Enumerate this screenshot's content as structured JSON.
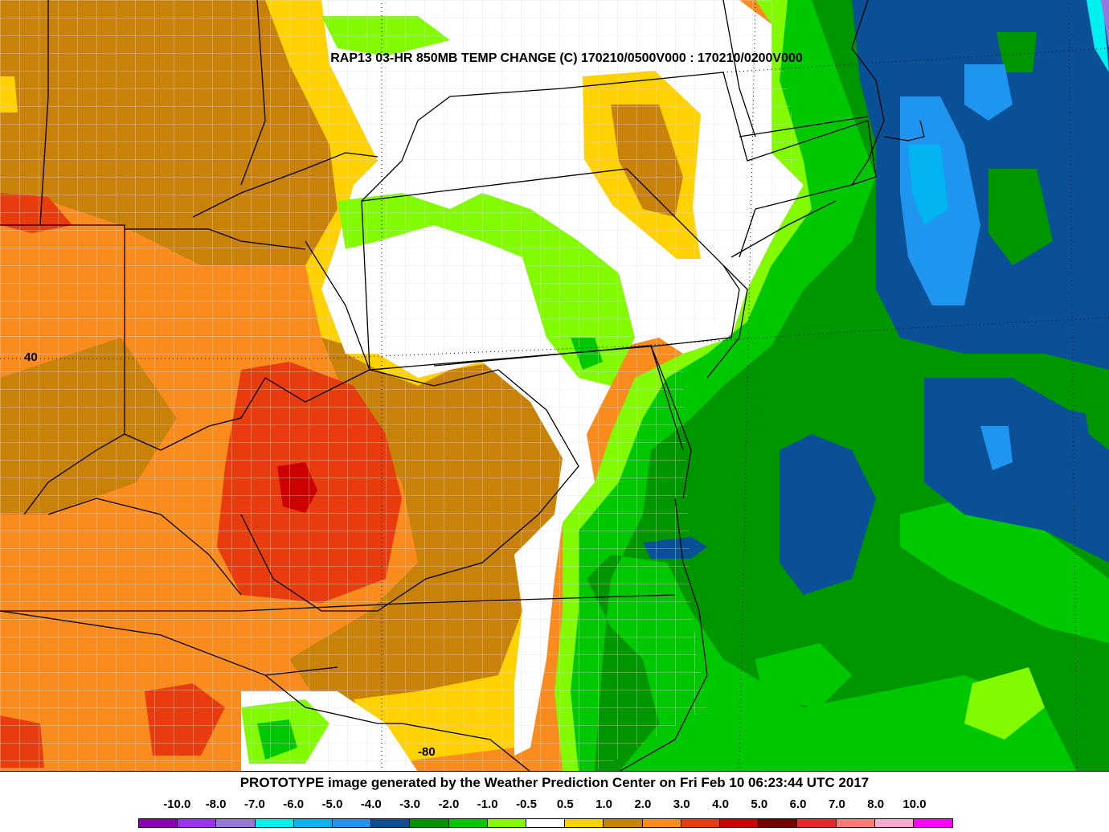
{
  "map": {
    "title": "RAP13 03-HR 850MB TEMP CHANGE (C) 170210/0500V000 : 170210/0200V000",
    "lat_label": "40",
    "contour_label": "-80",
    "colors": {
      "t_gt10": "#ff00ff",
      "t_8_10": "#ffaacc",
      "t_7_8": "#ff7878",
      "t_6_7": "#e82828",
      "t_5_6": "#780000",
      "t_4_5": "#cc0000",
      "t_3_4": "#e83c0f",
      "t_2_3": "#fa8c1e",
      "t_1_2": "#c8820a",
      "t_05_1": "#ffd200",
      "t_neutral": "#ffffff",
      "t_m05_m1": "#82fa00",
      "t_m1_m2": "#00c800",
      "t_m2_m3": "#009600",
      "t_m3_m4": "#0a5096",
      "t_m4_m5": "#1e96f0",
      "t_m5_m6": "#00b4f0",
      "t_m6_m7": "#00f0f0",
      "state_lines": "#000000",
      "county_lines": "#dcdcdc"
    }
  },
  "footer": {
    "credit": "PROTOTYPE image generated by the Weather Prediction Center on Fri Feb 10 06:23:44 UTC 2017"
  },
  "legend": {
    "labels": [
      "-10.0",
      "-8.0",
      "-7.0",
      "-6.0",
      "-5.0",
      "-4.0",
      "-3.0",
      "-2.0",
      "-1.0",
      "-0.5",
      "0.5",
      "1.0",
      "2.0",
      "3.0",
      "4.0",
      "5.0",
      "6.0",
      "7.0",
      "8.0",
      "10.0"
    ],
    "colors": [
      "#8c00b4",
      "#a030f0",
      "#9678dc",
      "#00f0f0",
      "#00b4f0",
      "#1e96f0",
      "#0a5096",
      "#009600",
      "#00c800",
      "#82fa00",
      "#ffffff",
      "#ffd200",
      "#c8820a",
      "#fa8c1e",
      "#e83c0f",
      "#cc0000",
      "#780000",
      "#e82828",
      "#ff7878",
      "#ffaacc",
      "#ff00ff"
    ]
  }
}
